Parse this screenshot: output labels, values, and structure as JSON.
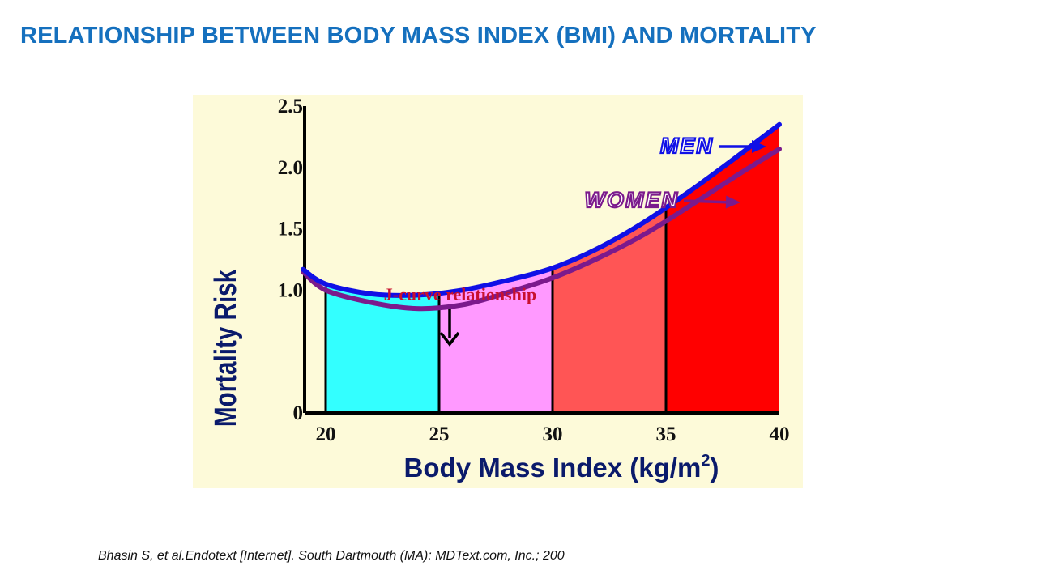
{
  "slide": {
    "title": "RELATIONSHIP BETWEEN BODY MASS INDEX (BMI) AND MORTALITY",
    "citation": "Bhasin S, et al.Endotext [Internet]. South Dartmouth (MA): MDText.com, Inc.; 200"
  },
  "colors": {
    "title": "#1570BE",
    "panel_bg": "#FDFAD9",
    "men_curve": "#1010E6",
    "women_curve": "#7B1A8C",
    "annotation": "#C8102E",
    "axis_label": "#0A1A6B"
  },
  "chart_data": {
    "type": "area",
    "title": "",
    "xlabel": "Body Mass Index (kg/m",
    "xlabel_superscript": "2",
    "xlabel_close": ")",
    "ylabel": "Mortality Risk",
    "xlim": [
      18,
      40
    ],
    "ylim": [
      0,
      2.5
    ],
    "x_ticks": [
      "20",
      "25",
      "30",
      "35",
      "40"
    ],
    "y_ticks": [
      "2.5",
      "2.0",
      "1.5",
      "1.0",
      "0"
    ],
    "bands": [
      {
        "from": 20,
        "to": 25,
        "color": "#33FFFF"
      },
      {
        "from": 25,
        "to": 30,
        "color": "#FF99FF"
      },
      {
        "from": 30,
        "to": 35,
        "color": "#FF5555"
      },
      {
        "from": 35,
        "to": 40,
        "color": "#FF0000"
      }
    ],
    "series": [
      {
        "name": "MEN",
        "x": [
          19,
          20,
          22,
          24,
          26,
          28,
          30,
          32,
          34,
          36,
          38,
          40
        ],
        "y": [
          1.17,
          1.05,
          0.97,
          0.96,
          1.0,
          1.08,
          1.18,
          1.34,
          1.55,
          1.8,
          2.07,
          2.35
        ]
      },
      {
        "name": "WOMEN",
        "x": [
          19,
          20,
          22,
          24,
          26,
          28,
          30,
          32,
          34,
          36,
          38,
          40
        ],
        "y": [
          1.15,
          1.0,
          0.9,
          0.85,
          0.88,
          0.98,
          1.1,
          1.26,
          1.45,
          1.68,
          1.92,
          2.15
        ]
      }
    ],
    "annotations": [
      {
        "text": "J-curve relationship",
        "x": 24,
        "y": 0.96
      }
    ],
    "legend": [
      "MEN",
      "WOMEN"
    ]
  }
}
